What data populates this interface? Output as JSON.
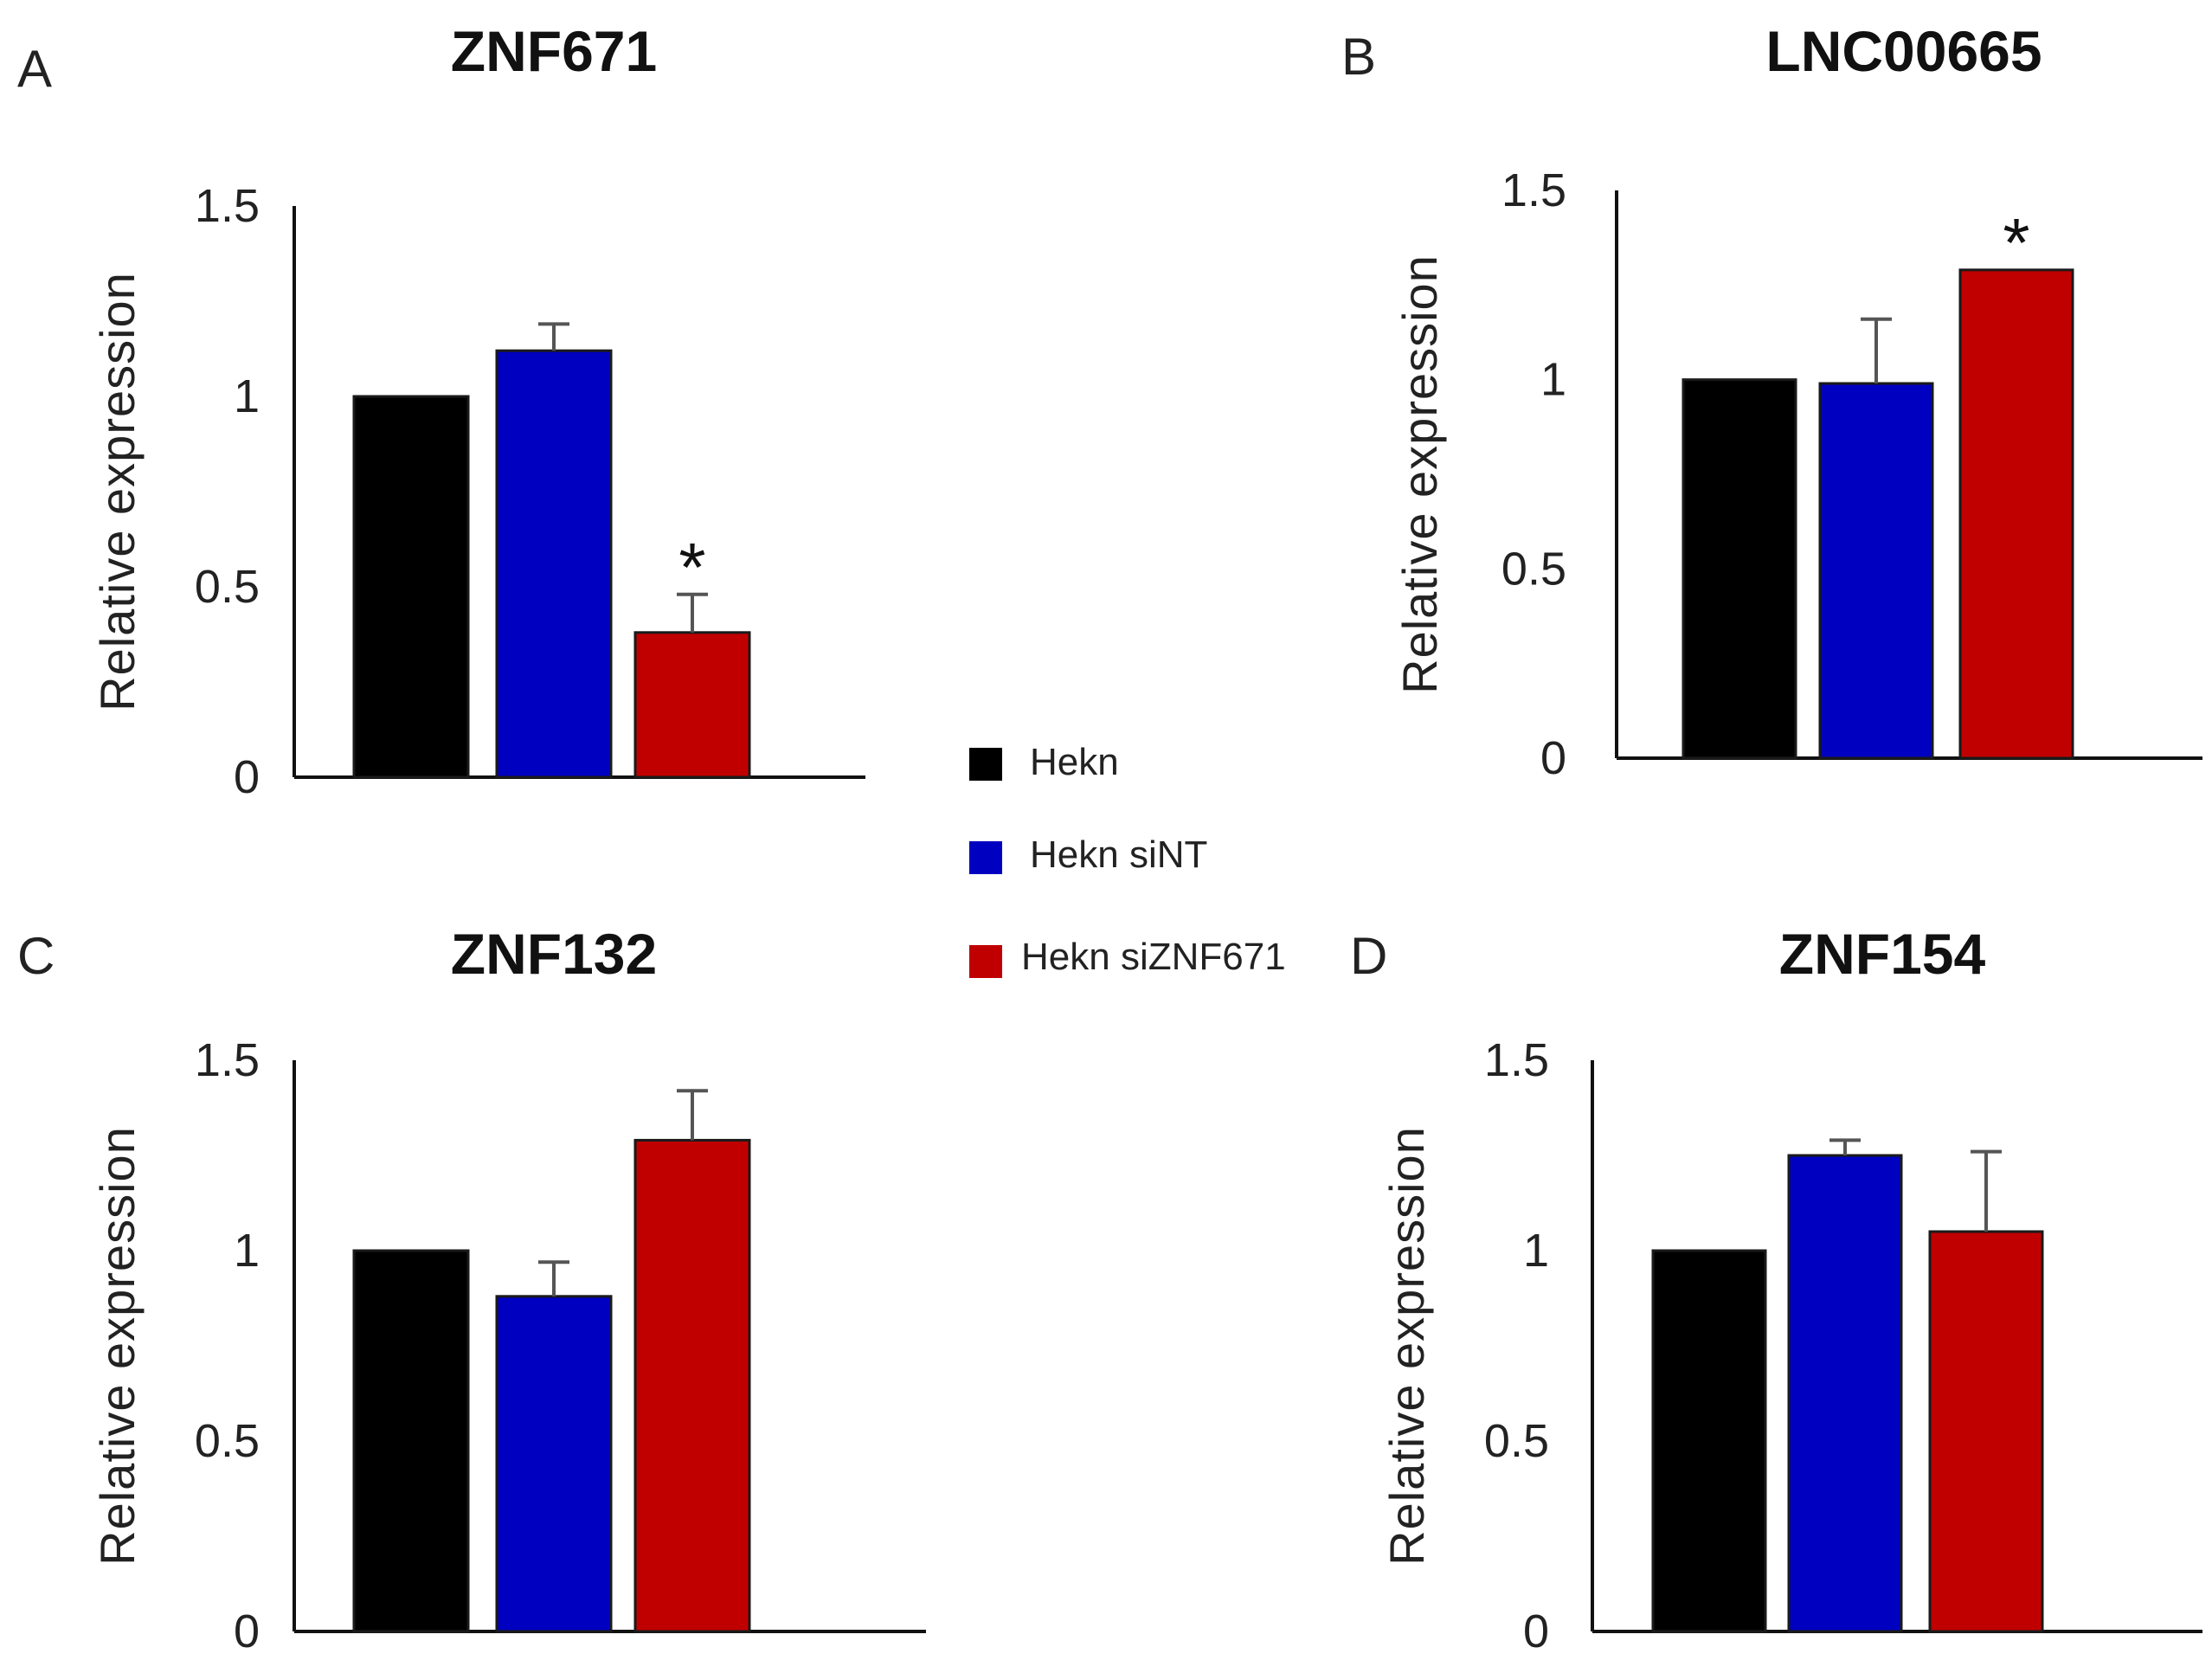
{
  "legend": [
    {
      "label": "Hekn",
      "color": "#000000"
    },
    {
      "label": "Hekn siNT",
      "color": "#0000c0"
    },
    {
      "label": "Hekn siZNF671",
      "color": "#c00000"
    }
  ],
  "chart_data": [
    {
      "type": "bar",
      "panel": "A",
      "title": "ZNF671",
      "ylabel": "Relative expression",
      "xlabel": "",
      "ylim": [
        0,
        1.5
      ],
      "yticks": [
        "0",
        "0.5",
        "1",
        "1.5"
      ],
      "categories": [
        "Hekn",
        "Hekn siNT",
        "Hekn siZNF671"
      ],
      "values": [
        1.0,
        1.12,
        0.38
      ],
      "errors": [
        0,
        0.07,
        0.1
      ],
      "significance": [
        "",
        "",
        "*"
      ]
    },
    {
      "type": "bar",
      "panel": "B",
      "title": "LNC00665",
      "ylabel": "Relative expression",
      "xlabel": "",
      "ylim": [
        0,
        1.5
      ],
      "yticks": [
        "0",
        "0.5",
        "1",
        "1.5"
      ],
      "categories": [
        "Hekn",
        "Hekn siNT",
        "Hekn siZNF671"
      ],
      "values": [
        1.0,
        0.99,
        1.29
      ],
      "errors": [
        0,
        0.17,
        0
      ],
      "significance": [
        "",
        "",
        "*"
      ]
    },
    {
      "type": "bar",
      "panel": "C",
      "title": "ZNF132",
      "ylabel": "Relative expression",
      "xlabel": "",
      "ylim": [
        0,
        1.5
      ],
      "yticks": [
        "0",
        "0.5",
        "1",
        "1.5"
      ],
      "categories": [
        "Hekn",
        "Hekn siNT",
        "Hekn siZNF671"
      ],
      "values": [
        1.0,
        0.88,
        1.29
      ],
      "errors": [
        0,
        0.09,
        0.13
      ],
      "significance": [
        "",
        "",
        ""
      ]
    },
    {
      "type": "bar",
      "panel": "D",
      "title": "ZNF154",
      "ylabel": "Relative expression",
      "xlabel": "",
      "ylim": [
        0,
        1.5
      ],
      "yticks": [
        "0",
        "0.5",
        "1",
        "1.5"
      ],
      "categories": [
        "Hekn",
        "Hekn siNT",
        "Hekn siZNF671"
      ],
      "values": [
        1.0,
        1.25,
        1.05
      ],
      "errors": [
        0,
        0.04,
        0.21
      ],
      "significance": [
        "",
        "",
        ""
      ]
    }
  ]
}
